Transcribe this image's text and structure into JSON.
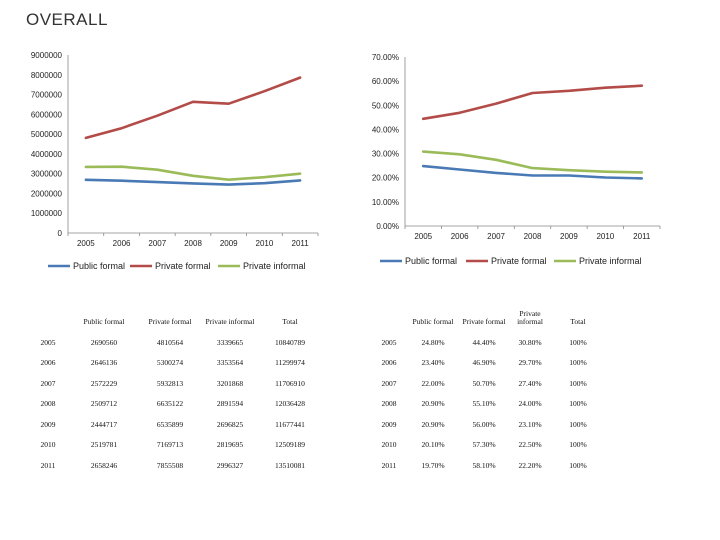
{
  "title": "OVERALL",
  "colors": {
    "public": "#4a7ab5",
    "private_formal": "#b34c48",
    "private_informal": "#9bbb59",
    "axis": "#888888"
  },
  "chart_data": [
    {
      "type": "line",
      "title": "",
      "categories": [
        "2005",
        "2006",
        "2007",
        "2008",
        "2009",
        "2010",
        "2011"
      ],
      "ylim": [
        0,
        9000000
      ],
      "yticks": [
        "9000000",
        "8000000",
        "7000000",
        "6000000",
        "5000000",
        "4000000",
        "3000000",
        "2000000",
        "1000000",
        "0"
      ],
      "series": [
        {
          "name": "Public formal",
          "values": [
            2690560,
            2646136,
            2572229,
            2509712,
            2444717,
            2519781,
            2658246
          ]
        },
        {
          "name": "Private formal",
          "values": [
            4810564,
            5300274,
            5932813,
            6635122,
            6535899,
            7169713,
            7855508
          ]
        },
        {
          "name": "Private informal",
          "values": [
            3339665,
            3353564,
            3201868,
            2891594,
            2696825,
            2819695,
            2996327
          ]
        }
      ],
      "legend": "bottom"
    },
    {
      "type": "line",
      "title": "",
      "categories": [
        "2005",
        "2006",
        "2007",
        "2008",
        "2009",
        "2010",
        "2011"
      ],
      "ylim": [
        0,
        70
      ],
      "yticks": [
        "70.00%",
        "60.00%",
        "50.00%",
        "40.00%",
        "30.00%",
        "20.00%",
        "10.00%",
        "0.00%"
      ],
      "series": [
        {
          "name": "Public formal",
          "values": [
            24.8,
            23.4,
            22.0,
            20.9,
            20.9,
            20.1,
            19.7
          ]
        },
        {
          "name": "Private formal",
          "values": [
            44.4,
            46.9,
            50.7,
            55.1,
            56.0,
            57.3,
            58.1
          ]
        },
        {
          "name": "Private informal",
          "values": [
            30.8,
            29.7,
            27.4,
            24.0,
            23.1,
            22.5,
            22.2
          ]
        }
      ],
      "legend": "bottom"
    }
  ],
  "table_abs": {
    "headers": [
      "",
      "Public formal",
      "Private formal",
      "Private informal",
      "Total"
    ],
    "rows": [
      [
        "2005",
        "2690560",
        "4810564",
        "3339665",
        "10840789"
      ],
      [
        "2006",
        "2646136",
        "5300274",
        "3353564",
        "11299974"
      ],
      [
        "2007",
        "2572229",
        "5932813",
        "3201868",
        "11706910"
      ],
      [
        "2008",
        "2509712",
        "6635122",
        "2891594",
        "12036428"
      ],
      [
        "2009",
        "2444717",
        "6535899",
        "2696825",
        "11677441"
      ],
      [
        "2010",
        "2519781",
        "7169713",
        "2819695",
        "12509189"
      ],
      [
        "2011",
        "2658246",
        "7855508",
        "2996327",
        "13510081"
      ]
    ]
  },
  "table_pct": {
    "headers": [
      "",
      "Public formal",
      "Private formal",
      "Private informal",
      "Total"
    ],
    "rows": [
      [
        "2005",
        "24.80%",
        "44.40%",
        "30.80%",
        "100%"
      ],
      [
        "2006",
        "23.40%",
        "46.90%",
        "29.70%",
        "100%"
      ],
      [
        "2007",
        "22.00%",
        "50.70%",
        "27.40%",
        "100%"
      ],
      [
        "2008",
        "20.90%",
        "55.10%",
        "24.00%",
        "100%"
      ],
      [
        "2009",
        "20.90%",
        "56.00%",
        "23.10%",
        "100%"
      ],
      [
        "2010",
        "20.10%",
        "57.30%",
        "22.50%",
        "100%"
      ],
      [
        "2011",
        "19.70%",
        "58.10%",
        "22.20%",
        "100%"
      ]
    ]
  }
}
